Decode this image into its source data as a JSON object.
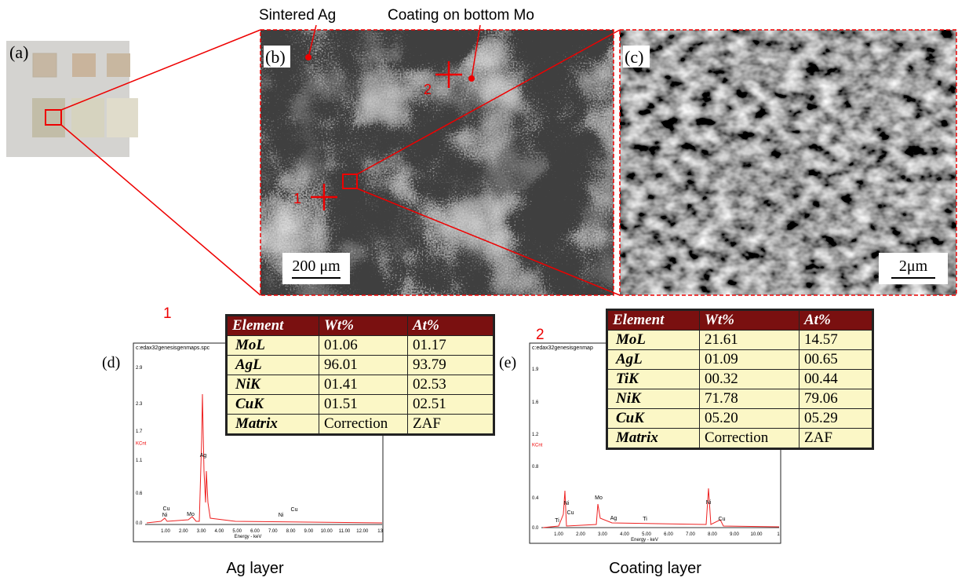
{
  "labels": {
    "sintered": "Sintered Ag",
    "coating": "Coating on bottom Mo"
  },
  "panels": {
    "a": "(a)",
    "b": "(b)",
    "c": "(c)"
  },
  "scale_bars": {
    "b": "200 μm",
    "c": "2μm"
  },
  "points": [
    "1",
    "2"
  ],
  "spectra": [
    {
      "marker": "1",
      "panel": "(d)",
      "file": "c:edax32genesisgenmaps.spc",
      "y_label": "KCnt",
      "x_label": "Energy - keV",
      "yticks": [
        "2.9",
        "2.3",
        "1.7",
        "1.1",
        "0.6",
        "0.0"
      ],
      "xticks": [
        "1.00",
        "2.00",
        "3.00",
        "4.00",
        "5.00",
        "6.00",
        "7.00",
        "8.00",
        "9.00",
        "10.00",
        "11.00",
        "12.00",
        "13"
      ],
      "peaks": [
        "Cu",
        "Ni",
        "Mo",
        "Ag",
        "Ni",
        "Cu"
      ],
      "caption": "Ag layer",
      "table": {
        "header": [
          "Element",
          "Wt%",
          "At%"
        ],
        "rows": [
          [
            "MoL",
            "01.06",
            "01.17"
          ],
          [
            "AgL",
            "96.01",
            "93.79"
          ],
          [
            "NiK",
            "01.41",
            "02.53"
          ],
          [
            "CuK",
            "01.51",
            "02.51"
          ],
          [
            "Matrix",
            "Correction",
            "ZAF"
          ]
        ]
      }
    },
    {
      "marker": "2",
      "panel": "(e)",
      "file": "c:edax32genesisgenmap",
      "y_label": "KCnt",
      "x_label": "Energy - keV",
      "yticks": [
        "1.9",
        "1.6",
        "1.2",
        "0.8",
        "0.4",
        "0.0"
      ],
      "xticks": [
        "1.00",
        "2.00",
        "3.00",
        "4.00",
        "5.00",
        "6.00",
        "7.00",
        "8.00",
        "9.00",
        "10.00",
        "1"
      ],
      "peaks": [
        "Ni",
        "Ti",
        "Cu",
        "Mo",
        "Ag",
        "Ti",
        "Ni",
        "Cu"
      ],
      "caption": "Coating layer",
      "table": {
        "header": [
          "Element",
          "Wt%",
          "At%"
        ],
        "rows": [
          [
            "MoL",
            "21.61",
            "14.57"
          ],
          [
            "AgL",
            "01.09",
            "00.65"
          ],
          [
            "TiK",
            "00.32",
            "00.44"
          ],
          [
            "NiK",
            "71.78",
            "79.06"
          ],
          [
            "CuK",
            "05.20",
            "05.29"
          ],
          [
            "Matrix",
            "Correction",
            "ZAF"
          ]
        ]
      }
    }
  ]
}
